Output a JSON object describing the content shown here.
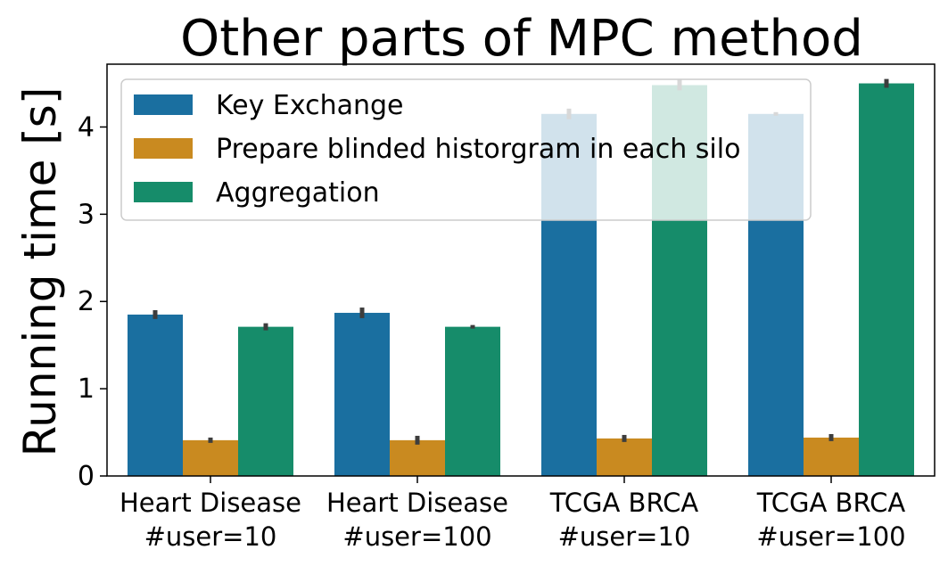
{
  "chart_data": {
    "type": "bar",
    "title": "Other parts of MPC method",
    "xlabel": "",
    "ylabel": "Running time [s]",
    "ylim": [
      0,
      4.72
    ],
    "yticks": [
      "0",
      "1",
      "2",
      "3",
      "4"
    ],
    "categories": [
      [
        "Heart Disease",
        "#user=10"
      ],
      [
        "Heart Disease",
        "#user=100"
      ],
      [
        "TCGA BRCA",
        "#user=10"
      ],
      [
        "TCGA BRCA",
        "#user=100"
      ]
    ],
    "series": [
      {
        "name": "Key Exchange",
        "color": "#1a6fa0",
        "values": [
          1.85,
          1.87,
          4.15,
          4.15
        ],
        "errors": [
          0.03,
          0.04,
          0.04,
          0.0
        ]
      },
      {
        "name": "Prepare blinded historgram in each silo",
        "color": "#c98a20",
        "values": [
          0.41,
          0.41,
          0.43,
          0.44
        ],
        "errors": [
          0.01,
          0.03,
          0.02,
          0.02
        ]
      },
      {
        "name": "Aggregation",
        "color": "#168c6a",
        "values": [
          1.71,
          1.71,
          4.48,
          4.5
        ],
        "errors": [
          0.02,
          0.0,
          0.04,
          0.03
        ]
      }
    ],
    "legend": "top-left",
    "grid": false
  }
}
